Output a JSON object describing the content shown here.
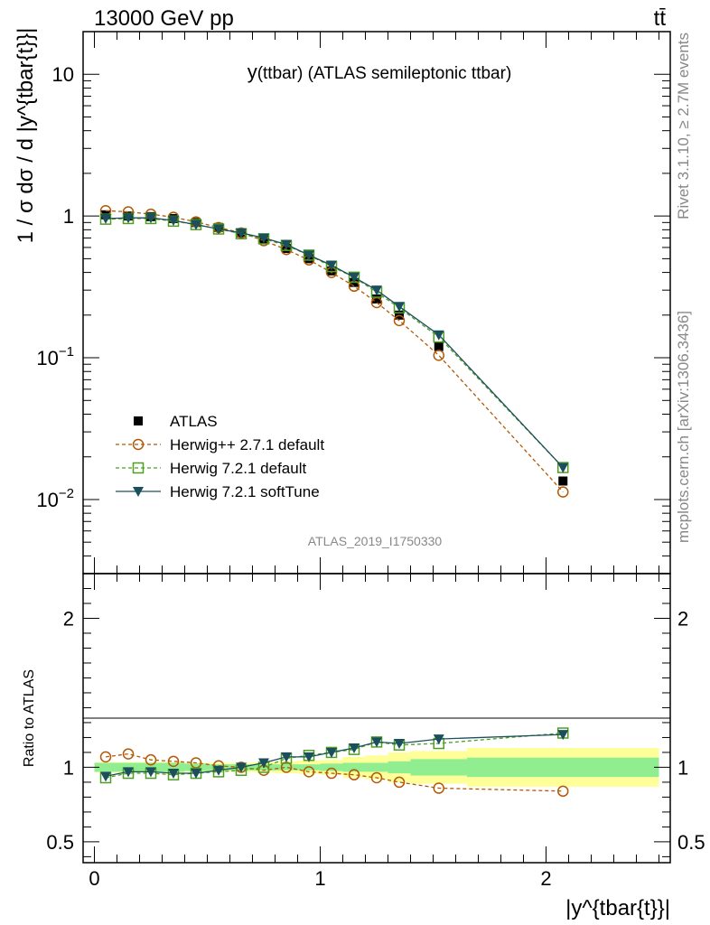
{
  "header": {
    "energy_label": "13000 GeV pp",
    "process_label": "tt̄"
  },
  "side_labels": {
    "rivet": "Rivet 3.1.10, ≥ 2.7M events",
    "mcplots": "mcplots.cern.ch [arXiv:1306.3436]"
  },
  "watermark": "ATLAS_2019_I1750330",
  "chart_data": [
    {
      "type": "scatter",
      "panel": "main",
      "title_main": "y",
      "title_rest": "(ttbar) (ATLAS semileptonic ttbar)",
      "ylabel": "1 / σ dσ / d |y^{tbar{t}}|",
      "yscale": "log",
      "ylim": [
        0.003,
        20
      ],
      "xlim": [
        -0.05,
        2.55
      ],
      "y_ticks": [
        {
          "value": 0.01,
          "base": "10",
          "exp": "−2"
        },
        {
          "value": 0.1,
          "base": "10",
          "exp": "−1"
        },
        {
          "value": 1,
          "base": "1",
          "exp": ""
        },
        {
          "value": 10,
          "base": "10",
          "exp": ""
        }
      ],
      "x": [
        0.05,
        0.15,
        0.25,
        0.35,
        0.45,
        0.55,
        0.65,
        0.75,
        0.85,
        0.95,
        1.05,
        1.15,
        1.25,
        1.35,
        1.525,
        2.075
      ],
      "series": [
        {
          "name": "ATLAS",
          "style": "data",
          "color": "#000000",
          "values": [
            1.02,
            1.0,
            0.99,
            0.96,
            0.9,
            0.83,
            0.76,
            0.68,
            0.59,
            0.5,
            0.41,
            0.34,
            0.26,
            0.2,
            0.12,
            0.0135
          ]
        },
        {
          "name": "Herwig++ 2.7.1 default",
          "style": "open-circle-dashed",
          "color": "#b35806",
          "values": [
            1.09,
            1.07,
            1.03,
            0.98,
            0.91,
            0.83,
            0.76,
            0.67,
            0.58,
            0.49,
            0.4,
            0.32,
            0.245,
            0.183,
            0.104,
            0.0113
          ]
        },
        {
          "name": "Herwig 7.2.1 default",
          "style": "open-square-dashed",
          "color": "#4d9f22",
          "values": [
            0.95,
            0.96,
            0.96,
            0.92,
            0.87,
            0.81,
            0.75,
            0.69,
            0.62,
            0.53,
            0.44,
            0.37,
            0.29,
            0.225,
            0.14,
            0.0168
          ]
        },
        {
          "name": "Herwig 7.2.1 softTune",
          "style": "filled-triangle-solid",
          "color": "#1b4f5c",
          "values": [
            0.96,
            0.97,
            0.97,
            0.93,
            0.87,
            0.81,
            0.76,
            0.7,
            0.63,
            0.53,
            0.45,
            0.37,
            0.3,
            0.23,
            0.145,
            0.0168
          ]
        }
      ]
    },
    {
      "type": "scatter",
      "panel": "ratio",
      "ylabel": "Ratio to ATLAS",
      "ylim": [
        0.36,
        2.3
      ],
      "xlim": [
        -0.05,
        2.55
      ],
      "xlabel": "|y^{tbar{t}}|",
      "y_ticks": [
        {
          "value": 0.5,
          "label": "0.5"
        },
        {
          "value": 1,
          "label": "1"
        },
        {
          "value": 2,
          "label": "2"
        }
      ],
      "x_ticks": [
        {
          "value": 0,
          "label": "0"
        },
        {
          "value": 1,
          "label": "1"
        },
        {
          "value": 2,
          "label": "2"
        }
      ],
      "bands": {
        "bin_edges": [
          0.0,
          0.1,
          0.2,
          0.3,
          0.4,
          0.5,
          0.6,
          0.7,
          0.8,
          0.9,
          1.0,
          1.1,
          1.2,
          1.3,
          1.4,
          1.65,
          2.5
        ],
        "stat": [
          0.03,
          0.03,
          0.03,
          0.03,
          0.025,
          0.02,
          0.02,
          0.02,
          0.02,
          0.02,
          0.025,
          0.03,
          0.03,
          0.04,
          0.055,
          0.065
        ],
        "total": [
          0.035,
          0.035,
          0.035,
          0.035,
          0.03,
          0.03,
          0.03,
          0.035,
          0.04,
          0.045,
          0.05,
          0.07,
          0.08,
          0.1,
          0.11,
          0.13
        ],
        "stat_color": "#90ee90",
        "total_color": "#ffff99"
      },
      "x": [
        0.05,
        0.15,
        0.25,
        0.35,
        0.45,
        0.55,
        0.65,
        0.75,
        0.85,
        0.95,
        1.05,
        1.15,
        1.25,
        1.35,
        1.525,
        2.075
      ],
      "series": [
        {
          "name": "Herwig++ 2.7.1 default",
          "style": "open-circle-dashed",
          "color": "#b35806",
          "values": [
            1.07,
            1.09,
            1.05,
            1.04,
            1.03,
            1.01,
            1.0,
            0.98,
            1.0,
            0.97,
            0.96,
            0.95,
            0.93,
            0.9,
            0.86,
            0.84
          ]
        },
        {
          "name": "Herwig 7.2.1 default",
          "style": "open-square-dashed",
          "color": "#4d9f22",
          "values": [
            0.93,
            0.96,
            0.96,
            0.95,
            0.96,
            0.97,
            0.98,
            1.0,
            1.06,
            1.08,
            1.1,
            1.12,
            1.17,
            1.15,
            1.16,
            1.23
          ]
        },
        {
          "name": "Herwig 7.2.1 softTune",
          "style": "filled-triangle-solid",
          "color": "#1b4f5c",
          "values": [
            0.94,
            0.97,
            0.97,
            0.96,
            0.96,
            0.98,
            1.0,
            1.03,
            1.07,
            1.07,
            1.1,
            1.13,
            1.17,
            1.16,
            1.19,
            1.22
          ]
        }
      ]
    }
  ]
}
